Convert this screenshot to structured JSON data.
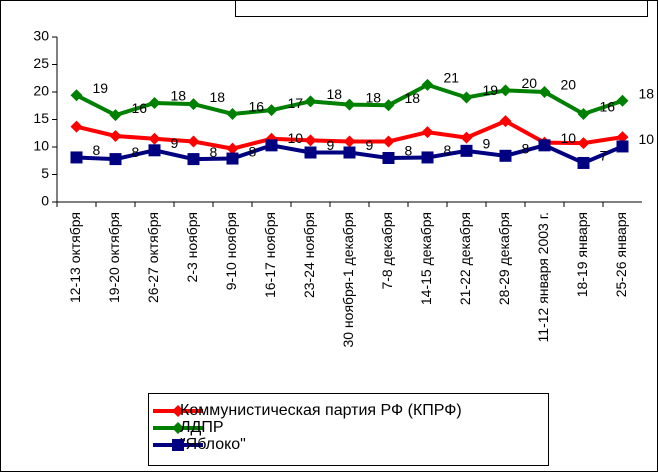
{
  "chart_data": {
    "type": "line",
    "categories": [
      "12-13 октября",
      "19-20 октября",
      "26-27 октября",
      "2-3 ноября",
      "9-10 ноября",
      "16-17 ноября",
      "23-24 ноября",
      "30 ноября-1 декабря",
      "7-8 декабря",
      "14-15 декабря",
      "21-22 декабря",
      "28-29 декабря",
      "11-12 января 2003 г.",
      "18-19 января",
      "25-26 января"
    ],
    "series": [
      {
        "name": "Коммунистическая партия РФ (КПРФ)",
        "color": "#ff0000",
        "marker": "diamond",
        "values": [
          13.7,
          12,
          11.5,
          11,
          9.7,
          11.5,
          11.2,
          11,
          11,
          12.7,
          11.7,
          14.7,
          10.8,
          10.7,
          11.8
        ]
      },
      {
        "name": "ЛДПР",
        "color": "#008000",
        "marker": "diamond",
        "values": [
          19.4,
          15.8,
          18,
          17.8,
          16,
          16.7,
          18.3,
          17.7,
          17.6,
          21.3,
          19,
          20.3,
          20,
          16,
          18.4
        ],
        "value_labels": [
          "19",
          "16",
          "18",
          "18",
          "16",
          "17",
          "18",
          "18",
          "18",
          "21",
          "19",
          "20",
          "20",
          "16",
          "18"
        ]
      },
      {
        "name": "\"Яблоко\"",
        "color": "#000080",
        "marker": "square",
        "values": [
          8.1,
          7.8,
          9.4,
          7.8,
          7.9,
          10.3,
          9,
          9,
          8,
          8.1,
          9.3,
          8.4,
          10.3,
          7.1,
          10.1
        ],
        "value_labels": [
          "8",
          "8",
          "9",
          "8",
          "8",
          "10",
          "9",
          "9",
          "8",
          "8",
          "9",
          "8",
          "10",
          "7",
          "10"
        ]
      }
    ],
    "ylim": [
      0,
      30
    ],
    "yticks": [
      0,
      5,
      10,
      15,
      20,
      25,
      30
    ],
    "grid": false,
    "legend": "bottom"
  }
}
